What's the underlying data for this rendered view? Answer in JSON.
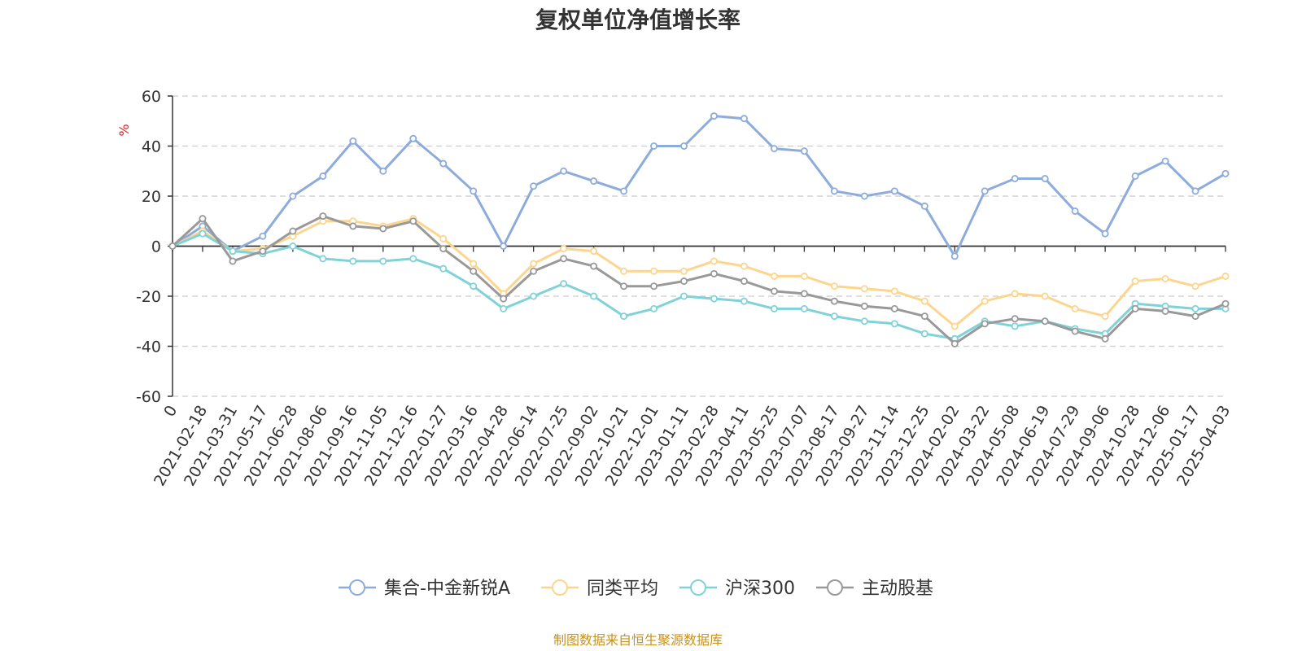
{
  "chart_data": {
    "type": "line",
    "title": "复权单位净值增长率",
    "ylabel": "%",
    "ylim": [
      -60,
      60
    ],
    "yticks": [
      "60",
      "40",
      "20",
      "0",
      "-20",
      "-40",
      "-60"
    ],
    "grid": true,
    "legend_position": "bottom",
    "x": [
      "0",
      "2021-02-18",
      "2021-03-31",
      "2021-05-17",
      "2021-06-28",
      "2021-08-06",
      "2021-09-16",
      "2021-11-05",
      "2021-12-16",
      "2022-01-27",
      "2022-03-16",
      "2022-04-28",
      "2022-06-14",
      "2022-07-25",
      "2022-09-02",
      "2022-10-21",
      "2022-12-01",
      "2023-01-11",
      "2023-02-28",
      "2023-04-11",
      "2023-05-25",
      "2023-07-07",
      "2023-08-17",
      "2023-09-27",
      "2023-11-14",
      "2023-12-25",
      "2024-02-02",
      "2024-03-22",
      "2024-05-08",
      "2024-06-19",
      "2024-07-29",
      "2024-09-06",
      "2024-10-28",
      "2024-12-06",
      "2025-01-17",
      "2025-04-03"
    ],
    "series": [
      {
        "name": "集合-中金新锐A",
        "color": "#8eacdb",
        "values": [
          0,
          8,
          -2,
          4,
          20,
          28,
          42,
          30,
          43,
          33,
          22,
          0,
          24,
          30,
          26,
          22,
          40,
          40,
          52,
          51,
          39,
          38,
          22,
          20,
          22,
          16,
          -4,
          22,
          27,
          27,
          14,
          5,
          28,
          34,
          22,
          29
        ]
      },
      {
        "name": "同类平均",
        "color": "#fcd68f",
        "values": [
          0,
          6,
          -2,
          -1,
          4,
          10,
          10,
          8,
          11,
          3,
          -7,
          -19,
          -7,
          -1,
          -2,
          -10,
          -10,
          -10,
          -6,
          -8,
          -12,
          -12,
          -16,
          -17,
          -18,
          -22,
          -32,
          -22,
          -19,
          -20,
          -25,
          -28,
          -14,
          -13,
          -16,
          -12
        ]
      },
      {
        "name": "沪深300",
        "color": "#7fd3d8",
        "values": [
          0,
          5,
          -2,
          -3,
          0,
          -5,
          -6,
          -6,
          -5,
          -9,
          -16,
          -25,
          -20,
          -15,
          -20,
          -28,
          -25,
          -20,
          -21,
          -22,
          -25,
          -25,
          -28,
          -30,
          -31,
          -35,
          -37,
          -30,
          -32,
          -30,
          -33,
          -35,
          -23,
          -24,
          -25,
          -25
        ]
      },
      {
        "name": "主动股基",
        "color": "#999999",
        "values": [
          0,
          11,
          -6,
          -2,
          6,
          12,
          8,
          7,
          10,
          -1,
          -10,
          -21,
          -10,
          -5,
          -8,
          -16,
          -16,
          -14,
          -11,
          -14,
          -18,
          -19,
          -22,
          -24,
          -25,
          -28,
          -39,
          -31,
          -29,
          -30,
          -34,
          -37,
          -25,
          -26,
          -28,
          -23
        ]
      }
    ]
  },
  "source_note": "制图数据来自恒生聚源数据库"
}
